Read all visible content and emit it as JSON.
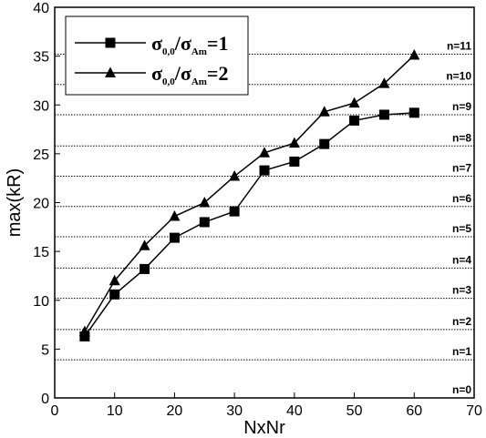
{
  "chart_data": {
    "type": "line",
    "title": "",
    "xlabel": "NxNr",
    "ylabel": "max(kR)",
    "xlim": [
      0,
      70
    ],
    "ylim": [
      0,
      40
    ],
    "x_ticks": [
      0,
      10,
      20,
      30,
      40,
      50,
      60,
      70
    ],
    "y_ticks": [
      0,
      5,
      10,
      15,
      20,
      25,
      30,
      35,
      40
    ],
    "x": [
      5,
      10,
      15,
      20,
      25,
      30,
      35,
      40,
      45,
      50,
      55,
      60
    ],
    "series": [
      {
        "label_main": "σ",
        "label_sub1": "0,0",
        "label_slash": "/",
        "label_main2": "σ",
        "label_sub2": "Am",
        "label_rhs": "=1",
        "marker": "square",
        "color": "#000000",
        "values": [
          6.3,
          10.6,
          13.2,
          16.4,
          18.0,
          19.1,
          23.3,
          24.2,
          26.0,
          28.4,
          29.0,
          29.2
        ]
      },
      {
        "label_main": "σ",
        "label_sub1": "0,0",
        "label_slash": "/",
        "label_main2": "σ",
        "label_sub2": "Am",
        "label_rhs": "=2",
        "marker": "triangle",
        "color": "#000000",
        "values": [
          6.8,
          12.0,
          15.6,
          18.6,
          20.0,
          22.7,
          25.1,
          26.1,
          29.3,
          30.2,
          32.2,
          35.1
        ]
      }
    ],
    "reference_lines": [
      {
        "label": "n=0",
        "y": 0.0
      },
      {
        "label": "n=1",
        "y": 3.9
      },
      {
        "label": "n=2",
        "y": 7.0
      },
      {
        "label": "n=3",
        "y": 10.2
      },
      {
        "label": "n=4",
        "y": 13.3
      },
      {
        "label": "n=5",
        "y": 16.5
      },
      {
        "label": "n=6",
        "y": 19.6
      },
      {
        "label": "n=7",
        "y": 22.7
      },
      {
        "label": "n=8",
        "y": 25.8
      },
      {
        "label": "n=9",
        "y": 29.0
      },
      {
        "label": "n=10",
        "y": 32.1
      },
      {
        "label": "n=11",
        "y": 35.2
      }
    ],
    "grid": false,
    "legend_position": "top-left"
  }
}
